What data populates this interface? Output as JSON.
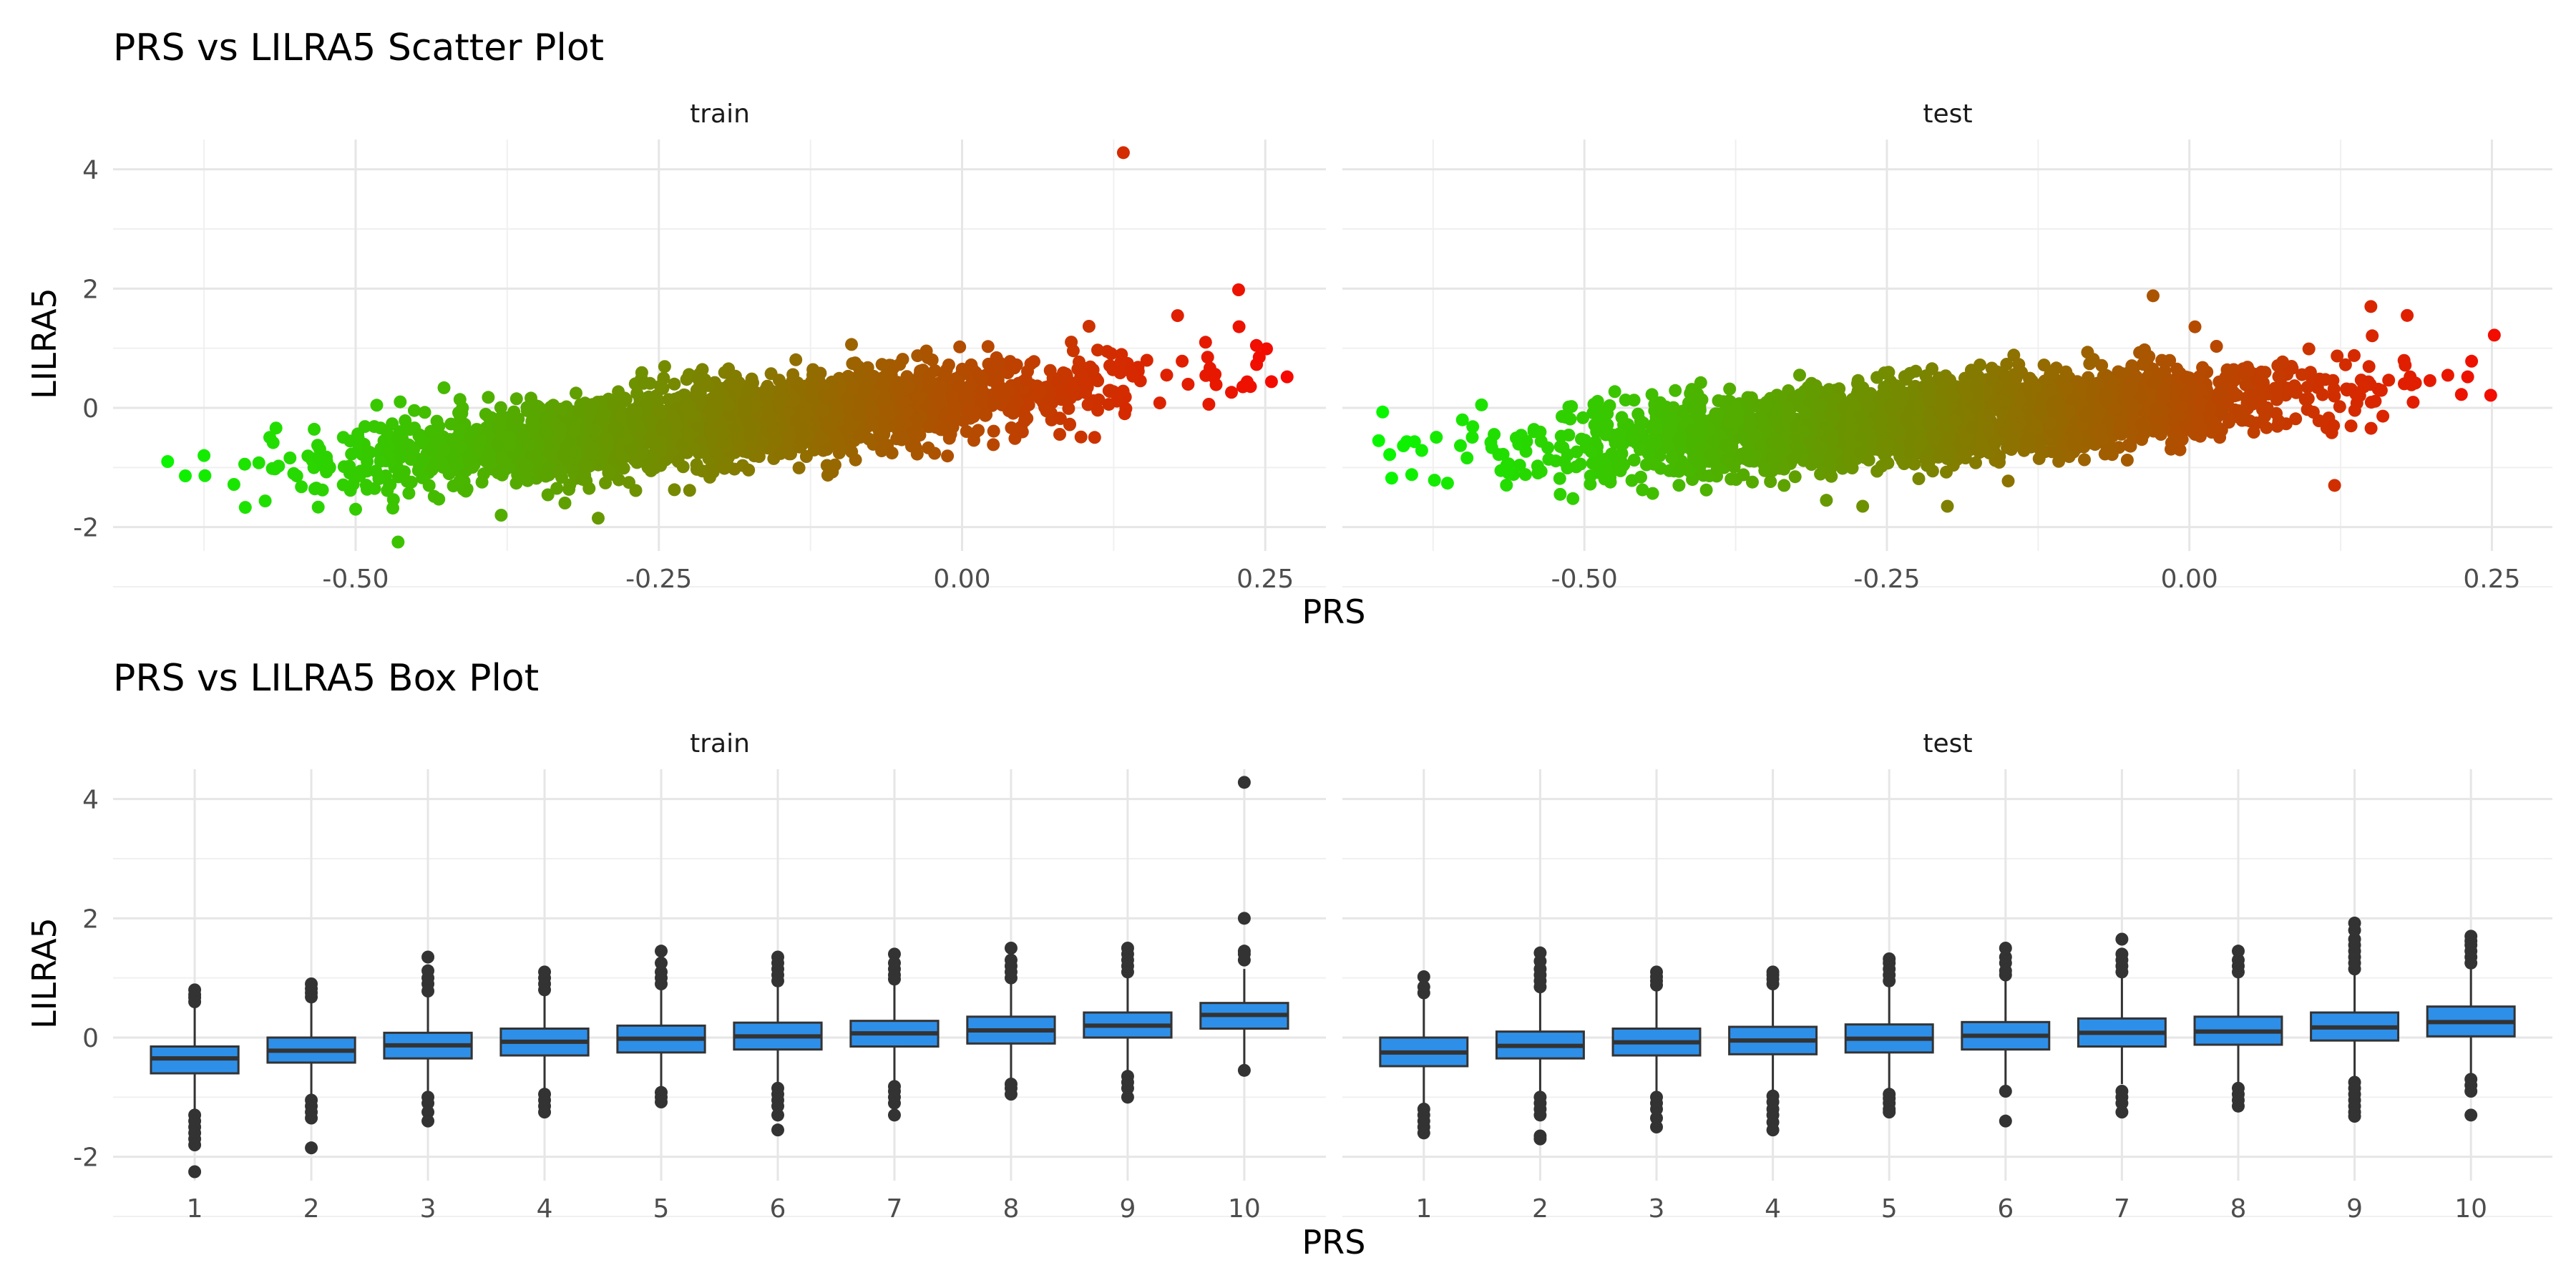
{
  "chart_data": [
    {
      "type": "scatter",
      "title": "PRS vs LILRA5 Scatter Plot",
      "xlabel": "PRS",
      "ylabel": "LILRA5",
      "facets": [
        "train",
        "test"
      ],
      "xlim": [
        -0.7,
        0.3
      ],
      "ylim": [
        -2.4,
        4.5
      ],
      "x_ticks": [
        -0.5,
        -0.25,
        0.0,
        0.25
      ],
      "x_tick_labels": [
        "-0.50",
        "-0.25",
        "0.00",
        "0.25"
      ],
      "y_ticks": [
        -2,
        0,
        2,
        4
      ],
      "y_tick_labels": [
        "-2",
        "0",
        "2",
        "4"
      ],
      "grid": true,
      "color_scale": {
        "low": "#00ff00",
        "high": "#ff0000",
        "mapped_to": "PRS"
      },
      "panels": [
        {
          "facet": "train",
          "x_range": [
            -0.655,
            0.268
          ],
          "trend": {
            "intercept": 0.15,
            "slope": 2.0
          },
          "notable_points": [
            {
              "x": 0.133,
              "y": 4.28
            },
            {
              "x": 0.228,
              "y": 1.98
            },
            {
              "x": 0.268,
              "y": 0.52
            },
            {
              "x": 0.245,
              "y": 0.85
            },
            {
              "x": -0.655,
              "y": -0.9
            },
            {
              "x": -0.625,
              "y": -0.8
            },
            {
              "x": -0.465,
              "y": -2.25
            },
            {
              "x": -0.3,
              "y": -1.85
            },
            {
              "x": -0.38,
              "y": -1.8
            },
            {
              "x": -0.5,
              "y": -1.7
            }
          ]
        },
        {
          "facet": "test",
          "x_range": [
            -0.67,
            0.252
          ],
          "trend": {
            "intercept": 0.12,
            "slope": 1.5
          },
          "notable_points": [
            {
              "x": -0.67,
              "y": -0.55
            },
            {
              "x": -0.585,
              "y": 0.05
            },
            {
              "x": 0.252,
              "y": 1.22
            },
            {
              "x": 0.23,
              "y": 0.52
            },
            {
              "x": -0.03,
              "y": 1.88
            },
            {
              "x": 0.15,
              "y": 1.7
            },
            {
              "x": 0.18,
              "y": 1.55
            },
            {
              "x": 0.12,
              "y": -1.3
            },
            {
              "x": -0.52,
              "y": -1.45
            },
            {
              "x": -0.2,
              "y": -1.65
            },
            {
              "x": -0.27,
              "y": -1.65
            },
            {
              "x": -0.3,
              "y": -1.55
            }
          ]
        }
      ]
    },
    {
      "type": "box",
      "title": "PRS vs LILRA5 Box Plot",
      "xlabel": "PRS",
      "ylabel": "LILRA5",
      "facets": [
        "train",
        "test"
      ],
      "categories": [
        "1",
        "2",
        "3",
        "4",
        "5",
        "6",
        "7",
        "8",
        "9",
        "10"
      ],
      "ylim": [
        -2.4,
        4.5
      ],
      "y_ticks": [
        -2,
        0,
        2,
        4
      ],
      "y_tick_labels": [
        "-2",
        "0",
        "2",
        "4"
      ],
      "grid": true,
      "box_color": "#2e8fe8",
      "panels": [
        {
          "facet": "train",
          "boxes": [
            {
              "q1": -0.6,
              "median": -0.35,
              "q3": -0.15,
              "lower": -1.25,
              "upper": 0.55,
              "outliers": [
                0.6,
                0.67,
                0.72,
                0.8,
                -1.3,
                -1.4,
                -1.5,
                -1.6,
                -1.7,
                -1.8,
                -2.25
              ]
            },
            {
              "q1": -0.42,
              "median": -0.22,
              "q3": 0.0,
              "lower": -1.0,
              "upper": 0.62,
              "outliers": [
                0.68,
                0.75,
                0.82,
                0.9,
                -1.05,
                -1.15,
                -1.25,
                -1.35,
                -1.85
              ]
            },
            {
              "q1": -0.35,
              "median": -0.13,
              "q3": 0.08,
              "lower": -0.95,
              "upper": 0.7,
              "outliers": [
                0.78,
                0.9,
                1.0,
                1.12,
                1.35,
                -1.0,
                -1.1,
                -1.25,
                -1.4
              ]
            },
            {
              "q1": -0.3,
              "median": -0.07,
              "q3": 0.15,
              "lower": -0.9,
              "upper": 0.75,
              "outliers": [
                0.8,
                0.9,
                1.0,
                1.1,
                -0.95,
                -1.05,
                -1.15,
                -1.25
              ]
            },
            {
              "q1": -0.25,
              "median": -0.02,
              "q3": 0.2,
              "lower": -0.88,
              "upper": 0.85,
              "outliers": [
                0.9,
                1.0,
                1.1,
                1.25,
                1.45,
                -0.92,
                -1.0,
                -1.08
              ]
            },
            {
              "q1": -0.2,
              "median": 0.02,
              "q3": 0.25,
              "lower": -0.82,
              "upper": 0.9,
              "outliers": [
                0.95,
                1.05,
                1.15,
                1.25,
                1.35,
                -0.85,
                -0.95,
                -1.05,
                -1.15,
                -1.3,
                -1.55
              ]
            },
            {
              "q1": -0.15,
              "median": 0.07,
              "q3": 0.28,
              "lower": -0.78,
              "upper": 0.92,
              "outliers": [
                0.98,
                1.05,
                1.15,
                1.25,
                1.4,
                -0.82,
                -0.9,
                -1.0,
                -1.1,
                -1.3
              ]
            },
            {
              "q1": -0.1,
              "median": 0.12,
              "q3": 0.35,
              "lower": -0.75,
              "upper": 0.95,
              "outliers": [
                1.0,
                1.1,
                1.2,
                1.3,
                1.5,
                -0.78,
                -0.85,
                -0.95
              ]
            },
            {
              "q1": 0.0,
              "median": 0.2,
              "q3": 0.42,
              "lower": -0.6,
              "upper": 1.05,
              "outliers": [
                1.1,
                1.2,
                1.3,
                1.4,
                1.5,
                -0.65,
                -0.75,
                -0.85,
                -1.0
              ]
            },
            {
              "q1": 0.15,
              "median": 0.38,
              "q3": 0.58,
              "lower": -0.45,
              "upper": 1.15,
              "outliers": [
                1.3,
                1.4,
                1.45,
                2.0,
                4.28,
                -0.55
              ]
            }
          ]
        },
        {
          "facet": "test",
          "boxes": [
            {
              "q1": -0.48,
              "median": -0.25,
              "q3": 0.0,
              "lower": -1.1,
              "upper": 0.65,
              "outliers": [
                0.75,
                0.85,
                1.02,
                -1.2,
                -1.3,
                -1.4,
                -1.5,
                -1.6
              ]
            },
            {
              "q1": -0.35,
              "median": -0.14,
              "q3": 0.1,
              "lower": -0.95,
              "upper": 0.8,
              "outliers": [
                0.85,
                0.95,
                1.05,
                1.15,
                1.28,
                1.42,
                -1.0,
                -1.1,
                -1.2,
                -1.3,
                -1.65,
                -1.7
              ]
            },
            {
              "q1": -0.3,
              "median": -0.08,
              "q3": 0.15,
              "lower": -0.95,
              "upper": 0.8,
              "outliers": [
                0.88,
                0.95,
                1.02,
                1.1,
                -1.0,
                -1.1,
                -1.2,
                -1.35,
                -1.5
              ]
            },
            {
              "q1": -0.28,
              "median": -0.05,
              "q3": 0.18,
              "lower": -0.92,
              "upper": 0.82,
              "outliers": [
                0.9,
                0.98,
                1.05,
                1.1,
                -0.98,
                -1.08,
                -1.2,
                -1.3,
                -1.42,
                -1.55
              ]
            },
            {
              "q1": -0.25,
              "median": -0.02,
              "q3": 0.22,
              "lower": -0.9,
              "upper": 0.88,
              "outliers": [
                0.95,
                1.05,
                1.15,
                1.25,
                1.32,
                -0.95,
                -1.02,
                -1.1,
                -1.2,
                -1.25
              ]
            },
            {
              "q1": -0.2,
              "median": 0.03,
              "q3": 0.26,
              "lower": -0.8,
              "upper": 0.95,
              "outliers": [
                1.05,
                1.12,
                1.25,
                1.35,
                1.5,
                -0.9,
                -1.4
              ]
            },
            {
              "q1": -0.15,
              "median": 0.08,
              "q3": 0.32,
              "lower": -0.78,
              "upper": 1.0,
              "outliers": [
                1.1,
                1.2,
                1.3,
                1.4,
                1.65,
                -0.9,
                -1.0,
                -1.1,
                -1.25
              ]
            },
            {
              "q1": -0.12,
              "median": 0.1,
              "q3": 0.35,
              "lower": -0.75,
              "upper": 1.02,
              "outliers": [
                1.1,
                1.2,
                1.3,
                1.45,
                -0.85,
                -0.95,
                -1.05,
                -1.15
              ]
            },
            {
              "q1": -0.05,
              "median": 0.17,
              "q3": 0.42,
              "lower": -0.7,
              "upper": 1.1,
              "outliers": [
                1.15,
                1.25,
                1.35,
                1.45,
                1.55,
                1.65,
                1.8,
                1.92,
                -0.75,
                -0.85,
                -0.95,
                -1.05,
                -1.15,
                -1.25,
                -1.32
              ]
            },
            {
              "q1": 0.02,
              "median": 0.26,
              "q3": 0.52,
              "lower": -0.62,
              "upper": 1.2,
              "outliers": [
                1.25,
                1.35,
                1.45,
                1.55,
                1.62,
                1.7,
                -0.7,
                -0.8,
                -0.9,
                -1.3
              ]
            }
          ]
        }
      ]
    }
  ]
}
